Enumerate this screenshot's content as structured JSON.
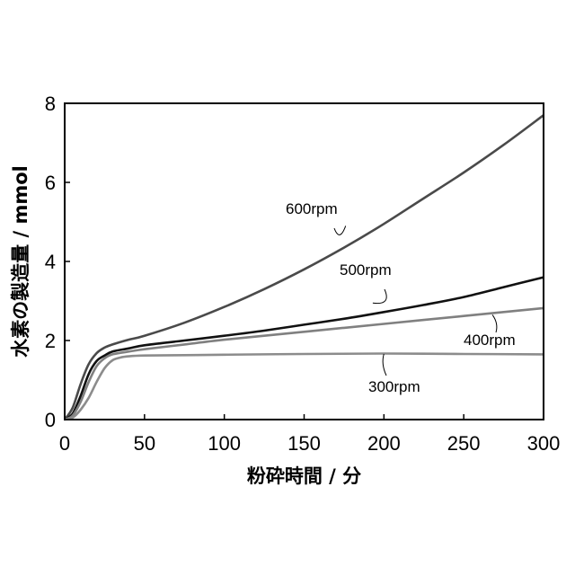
{
  "chart_data": {
    "type": "line",
    "xlabel": "粉砕時間 / 分",
    "ylabel": "水素の製造量 / mmol",
    "xlim": [
      0,
      300
    ],
    "ylim": [
      0,
      8
    ],
    "xticks": [
      0,
      50,
      100,
      150,
      200,
      250,
      300
    ],
    "yticks": [
      0,
      2,
      4,
      6,
      8
    ],
    "grid": false,
    "legend": "inline labels",
    "series": [
      {
        "name": "600rpm",
        "color": "#4a4a4a",
        "x": [
          0,
          5,
          10,
          15,
          20,
          25,
          30,
          40,
          50,
          75,
          100,
          125,
          150,
          175,
          200,
          225,
          250,
          275,
          300
        ],
        "y": [
          0,
          0.3,
          0.9,
          1.4,
          1.68,
          1.82,
          1.9,
          2.02,
          2.12,
          2.45,
          2.85,
          3.3,
          3.8,
          4.35,
          4.95,
          5.6,
          6.25,
          6.95,
          7.7
        ]
      },
      {
        "name": "500rpm",
        "color": "#111111",
        "x": [
          0,
          5,
          10,
          15,
          20,
          25,
          30,
          40,
          50,
          75,
          100,
          125,
          150,
          175,
          200,
          225,
          250,
          275,
          300
        ],
        "y": [
          0,
          0.15,
          0.6,
          1.15,
          1.48,
          1.62,
          1.72,
          1.8,
          1.88,
          2.0,
          2.12,
          2.25,
          2.4,
          2.55,
          2.72,
          2.9,
          3.1,
          3.35,
          3.6
        ]
      },
      {
        "name": "400rpm",
        "color": "#808080",
        "x": [
          0,
          5,
          10,
          15,
          20,
          25,
          30,
          40,
          50,
          75,
          100,
          125,
          150,
          175,
          200,
          225,
          250,
          275,
          300
        ],
        "y": [
          0,
          0.1,
          0.45,
          0.95,
          1.35,
          1.55,
          1.65,
          1.72,
          1.78,
          1.9,
          2.02,
          2.12,
          2.22,
          2.32,
          2.42,
          2.52,
          2.62,
          2.72,
          2.82
        ]
      },
      {
        "name": "300rpm",
        "color": "#8c8c8c",
        "x": [
          0,
          5,
          10,
          15,
          20,
          25,
          30,
          35,
          40,
          50,
          75,
          100,
          150,
          200,
          250,
          300
        ],
        "y": [
          0,
          0.05,
          0.25,
          0.55,
          0.95,
          1.3,
          1.5,
          1.57,
          1.6,
          1.62,
          1.63,
          1.64,
          1.66,
          1.67,
          1.66,
          1.65
        ]
      }
    ]
  }
}
